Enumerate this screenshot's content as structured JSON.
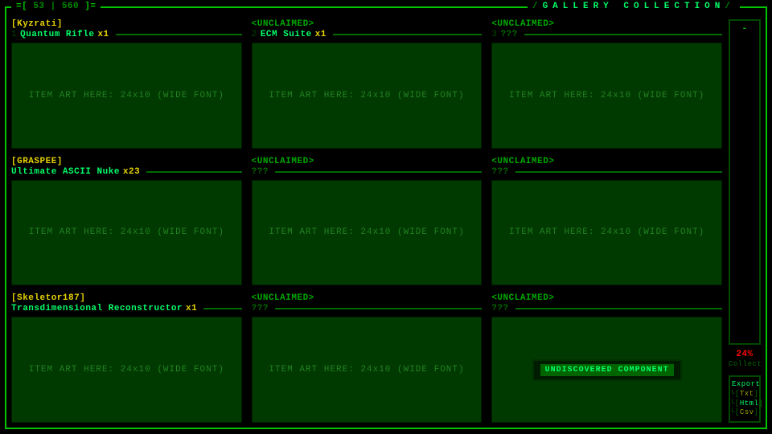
{
  "header": {
    "counter_current": "53",
    "counter_total": "560",
    "title": "GALLERY COLLECTION"
  },
  "sidebar": {
    "top_mark": "-",
    "percent_value": "24%",
    "percent_label": "Collect",
    "export_header": "Export",
    "export_options": [
      {
        "label": "Txt",
        "selected": false
      },
      {
        "label": "Html",
        "selected": true
      },
      {
        "label": "Csv",
        "selected": false
      }
    ]
  },
  "grid": {
    "art_placeholder": "ITEM ART HERE: 24x10 (WIDE FONT)",
    "cells": [
      {
        "owner": "[Kyzrati]",
        "owner_claimed": true,
        "idx": "1",
        "name": "Quantum Rifle",
        "qty": "x1",
        "unknown": false,
        "undiscovered": false
      },
      {
        "owner": "<UNCLAIMED>",
        "owner_claimed": false,
        "idx": "2",
        "name": "ECM Suite",
        "qty": "x1",
        "unknown": false,
        "undiscovered": false
      },
      {
        "owner": "<UNCLAIMED>",
        "owner_claimed": false,
        "idx": "3",
        "name": "???",
        "qty": "",
        "unknown": true,
        "undiscovered": false
      },
      {
        "owner": "[GRASPEE]",
        "owner_claimed": true,
        "idx": "",
        "name": "Ultimate ASCII Nuke",
        "qty": "x23",
        "unknown": false,
        "undiscovered": false
      },
      {
        "owner": "<UNCLAIMED>",
        "owner_claimed": false,
        "idx": "",
        "name": "???",
        "qty": "",
        "unknown": true,
        "undiscovered": false
      },
      {
        "owner": "<UNCLAIMED>",
        "owner_claimed": false,
        "idx": "",
        "name": "???",
        "qty": "",
        "unknown": true,
        "undiscovered": false
      },
      {
        "owner": "[Skeletor187]",
        "owner_claimed": true,
        "idx": "",
        "name": "Transdimensional Reconstructor",
        "qty": "x1",
        "unknown": false,
        "undiscovered": false
      },
      {
        "owner": "<UNCLAIMED>",
        "owner_claimed": false,
        "idx": "",
        "name": "???",
        "qty": "",
        "unknown": true,
        "undiscovered": false
      },
      {
        "owner": "<UNCLAIMED>",
        "owner_claimed": false,
        "idx": "",
        "name": "???",
        "qty": "",
        "unknown": true,
        "undiscovered": true,
        "undiscovered_label": "UNDISCOVERED COMPONENT"
      }
    ]
  },
  "colors": {
    "bg": "#000000",
    "panel": "#003a00",
    "border_bright": "#00c400",
    "border_dim": "#004800",
    "text_bright": "#00ff6a",
    "text_mid": "#00a800",
    "text_dim": "#006a00",
    "yellow": "#e6d200",
    "red": "#ff0000"
  }
}
